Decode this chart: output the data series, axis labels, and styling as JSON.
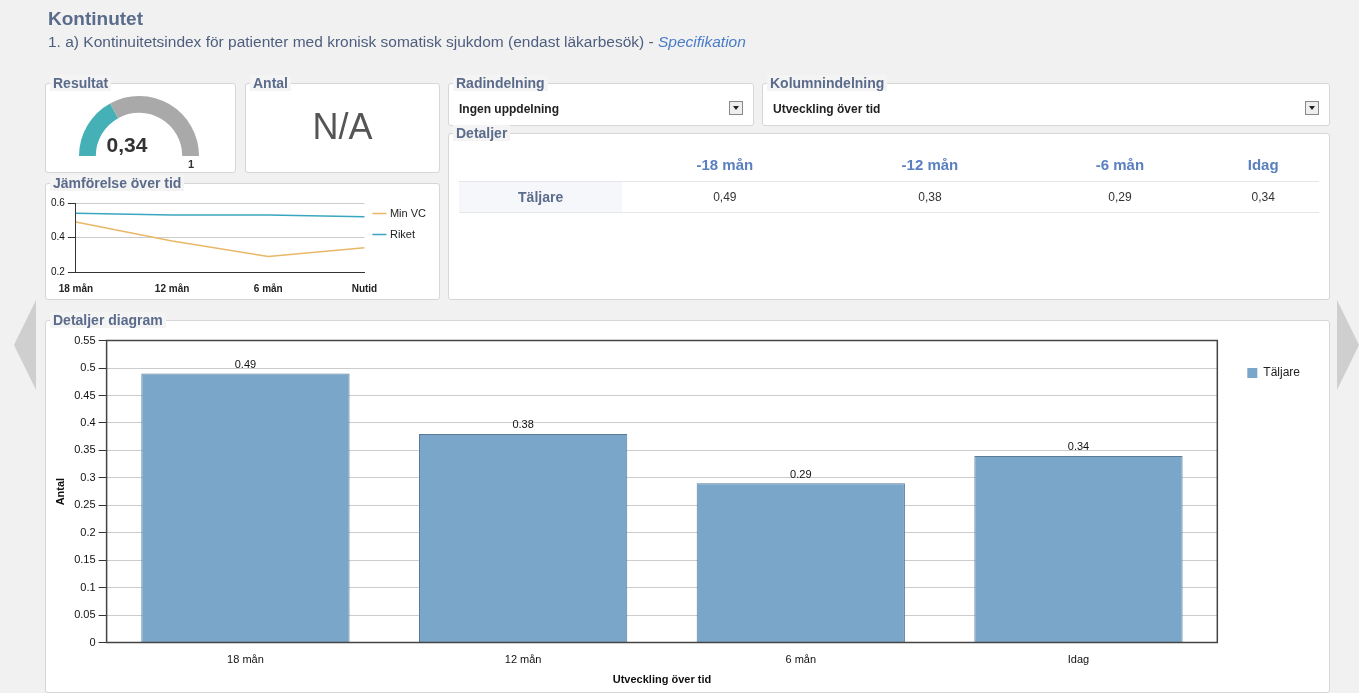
{
  "chart_data": [
    {
      "type": "other",
      "title": "Kontinutet",
      "subtitle": "1. a) Kontinuitetsindex för patienter med kronisk somatisk sjukdom (endast läkarbesök) - ",
      "annotations": [
        "Specifikation"
      ]
    },
    {
      "type": "donut",
      "title": "Resultat",
      "categories": [
        null,
        null
      ],
      "values": [
        0.34,
        0.66
      ],
      "colors": [
        "#45b0b6",
        "#a9a9a9"
      ],
      "value_labels": [
        "0,34",
        null
      ],
      "annotations": [
        "1"
      ]
    },
    {
      "type": "other",
      "title": "Antal",
      "annotations": [
        "N/A"
      ]
    },
    {
      "type": "other",
      "title": "Radindelning",
      "annotations": [
        "Ingen uppdelning"
      ]
    },
    {
      "type": "other",
      "title": "Kolumnindelning",
      "annotations": [
        "Utveckling över tid"
      ]
    },
    {
      "type": "line",
      "title": "Jämförelse över tid",
      "categories": [
        "18 mån",
        "12 mån",
        "6 mån",
        "Nutid"
      ],
      "series": [
        {
          "name": "Min VC",
          "color": "#e8b868",
          "values": [
            0.49,
            0.38,
            0.29,
            0.34
          ]
        },
        {
          "name": "Riket",
          "color": "#3aa6bf",
          "values": [
            0.54,
            0.53,
            0.53,
            0.52
          ]
        }
      ],
      "ylim": [
        0.2,
        0.6
      ],
      "yticks": [
        0.2,
        0.4,
        0.6
      ],
      "grid": "y",
      "legend": "right",
      "marker": "none"
    },
    {
      "type": "other",
      "title": "Detaljer",
      "categories": [
        "-18 mån",
        "-12 mån",
        "-6 mån",
        "Idag"
      ],
      "y_categories": [
        "Täljare"
      ],
      "cell_labels": [
        [
          "0,49",
          "0,38",
          "0,29",
          "0,34"
        ]
      ]
    },
    {
      "type": "bar",
      "title": "Detaljer diagram",
      "xlabel": "Utveckling över tid",
      "ylabel": "Antal",
      "categories": [
        "18 mån",
        "12 mån",
        "6 mån",
        "Idag"
      ],
      "series": [
        {
          "name": "Täljare",
          "color": "#7aa7c9",
          "values": [
            0.49,
            0.38,
            0.29,
            0.34
          ]
        }
      ],
      "ylim": [
        0,
        0.55
      ],
      "yticks": [
        0,
        0.05,
        0.1,
        0.15,
        0.2,
        0.25,
        0.3,
        0.35,
        0.4,
        0.45,
        0.5,
        0.55
      ],
      "grid": "y",
      "legend": "right",
      "data_labels": true
    }
  ]
}
